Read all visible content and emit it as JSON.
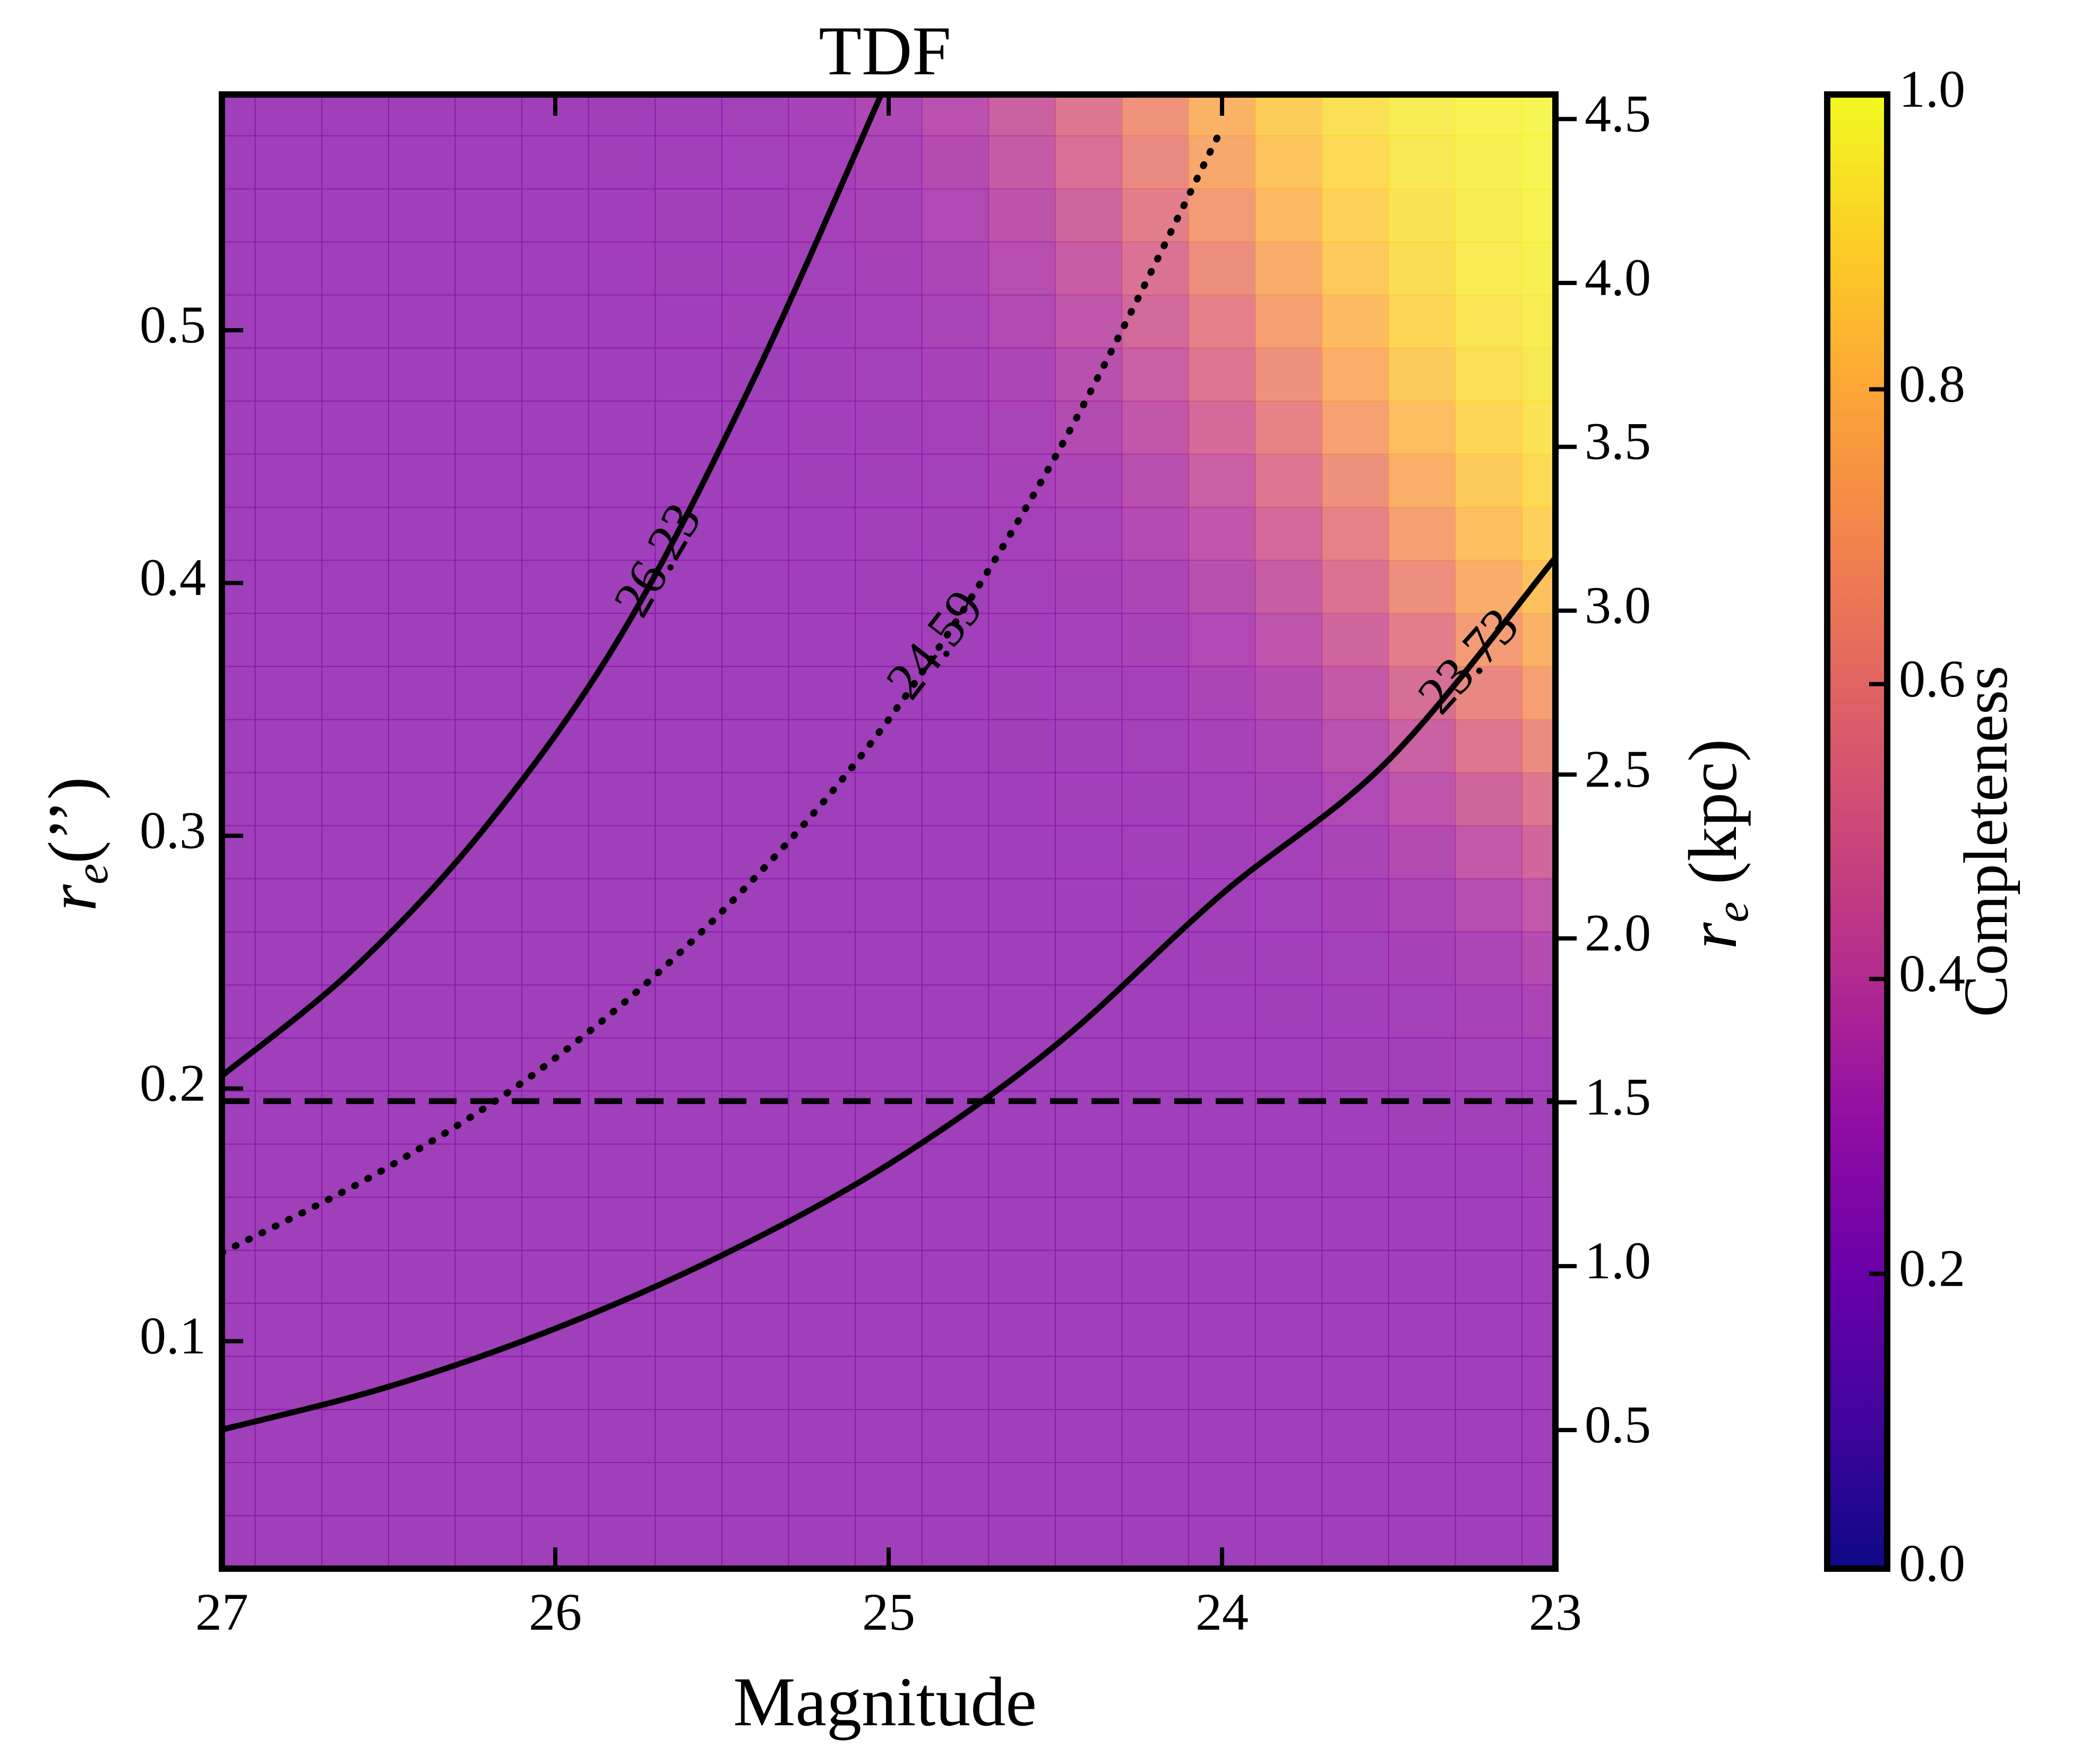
{
  "chart_data": {
    "type": "heatmap",
    "title": "TDF",
    "xlabel": "Magnitude",
    "ylabel_left": "r_e('')",
    "ylabel_right": "r_e (kpc)",
    "xlim": [
      27,
      23
    ],
    "ylim_left": [
      0.01,
      0.5933
    ],
    "ylim_right": [
      0.077,
      4.575
    ],
    "x_ticks": [
      27,
      26,
      25,
      24,
      23
    ],
    "x_tick_labels": [
      "27",
      "26",
      "25",
      "24",
      "23"
    ],
    "y_left_ticks": [
      0.1,
      0.2,
      0.3,
      0.4,
      0.5
    ],
    "y_left_tick_labels": [
      "0.1",
      "0.2",
      "0.3",
      "0.4",
      "0.5"
    ],
    "y_right_ticks": [
      0.5,
      1.0,
      1.5,
      2.0,
      2.5,
      3.0,
      3.5,
      4.0,
      4.5
    ],
    "y_right_tick_labels": [
      "0.5",
      "1.0",
      "1.5",
      "2.0",
      "2.5",
      "3.0",
      "3.5",
      "4.0",
      "4.5"
    ],
    "colorbar": {
      "label": "Completeness",
      "colormap": "plasma",
      "range": [
        0.0,
        1.0
      ],
      "ticks": [
        0.0,
        0.2,
        0.4,
        0.6,
        0.8,
        1.0
      ],
      "tick_labels": [
        "0.0",
        "0.2",
        "0.4",
        "0.6",
        "0.8",
        "1.0"
      ]
    },
    "grid": {
      "mag_bin_edges": [
        27.0,
        26.9,
        26.7,
        26.5,
        26.3,
        26.1,
        25.9,
        25.7,
        25.5,
        25.3,
        25.1,
        24.9,
        24.7,
        24.5,
        24.3,
        24.1,
        23.9,
        23.7,
        23.5,
        23.3,
        23.1,
        23.0
      ],
      "re_bin_edges": [
        0.01,
        0.031,
        0.052,
        0.073,
        0.094,
        0.115,
        0.136,
        0.157,
        0.178,
        0.199,
        0.22,
        0.241,
        0.262,
        0.283,
        0.304,
        0.325,
        0.346,
        0.367,
        0.388,
        0.409,
        0.43,
        0.451,
        0.472,
        0.493,
        0.514,
        0.535,
        0.556,
        0.577,
        0.5933
      ],
      "completeness_model": "logistic in (mag - 2.8 - 5*log10(r_e)), center 22.6, width 0.3"
    },
    "curves": [
      {
        "label": "26.23",
        "style": "solid",
        "re_at_mag": [
          [
            27.0,
            0.205
          ],
          [
            26.6,
            0.248
          ],
          [
            26.2,
            0.305
          ],
          [
            25.8,
            0.38
          ],
          [
            25.4,
            0.482
          ],
          [
            25.0,
            0.6
          ]
        ]
      },
      {
        "label": "24.59",
        "style": "dotted",
        "re_at_mag": [
          [
            27.0,
            0.135
          ],
          [
            26.5,
            0.169
          ],
          [
            26.0,
            0.212
          ],
          [
            25.5,
            0.27
          ],
          [
            25.0,
            0.346
          ],
          [
            24.5,
            0.45
          ],
          [
            24.0,
            0.58
          ]
        ]
      },
      {
        "label": "23.73",
        "style": "solid",
        "re_at_mag": [
          [
            27.0,
            0.065
          ],
          [
            26.5,
            0.082
          ],
          [
            26.0,
            0.105
          ],
          [
            25.5,
            0.134
          ],
          [
            25.0,
            0.17
          ],
          [
            24.5,
            0.217
          ],
          [
            24.0,
            0.277
          ],
          [
            23.5,
            0.33
          ],
          [
            23.0,
            0.41
          ]
        ]
      }
    ],
    "hline": {
      "style": "dashed",
      "y": 0.195
    }
  }
}
